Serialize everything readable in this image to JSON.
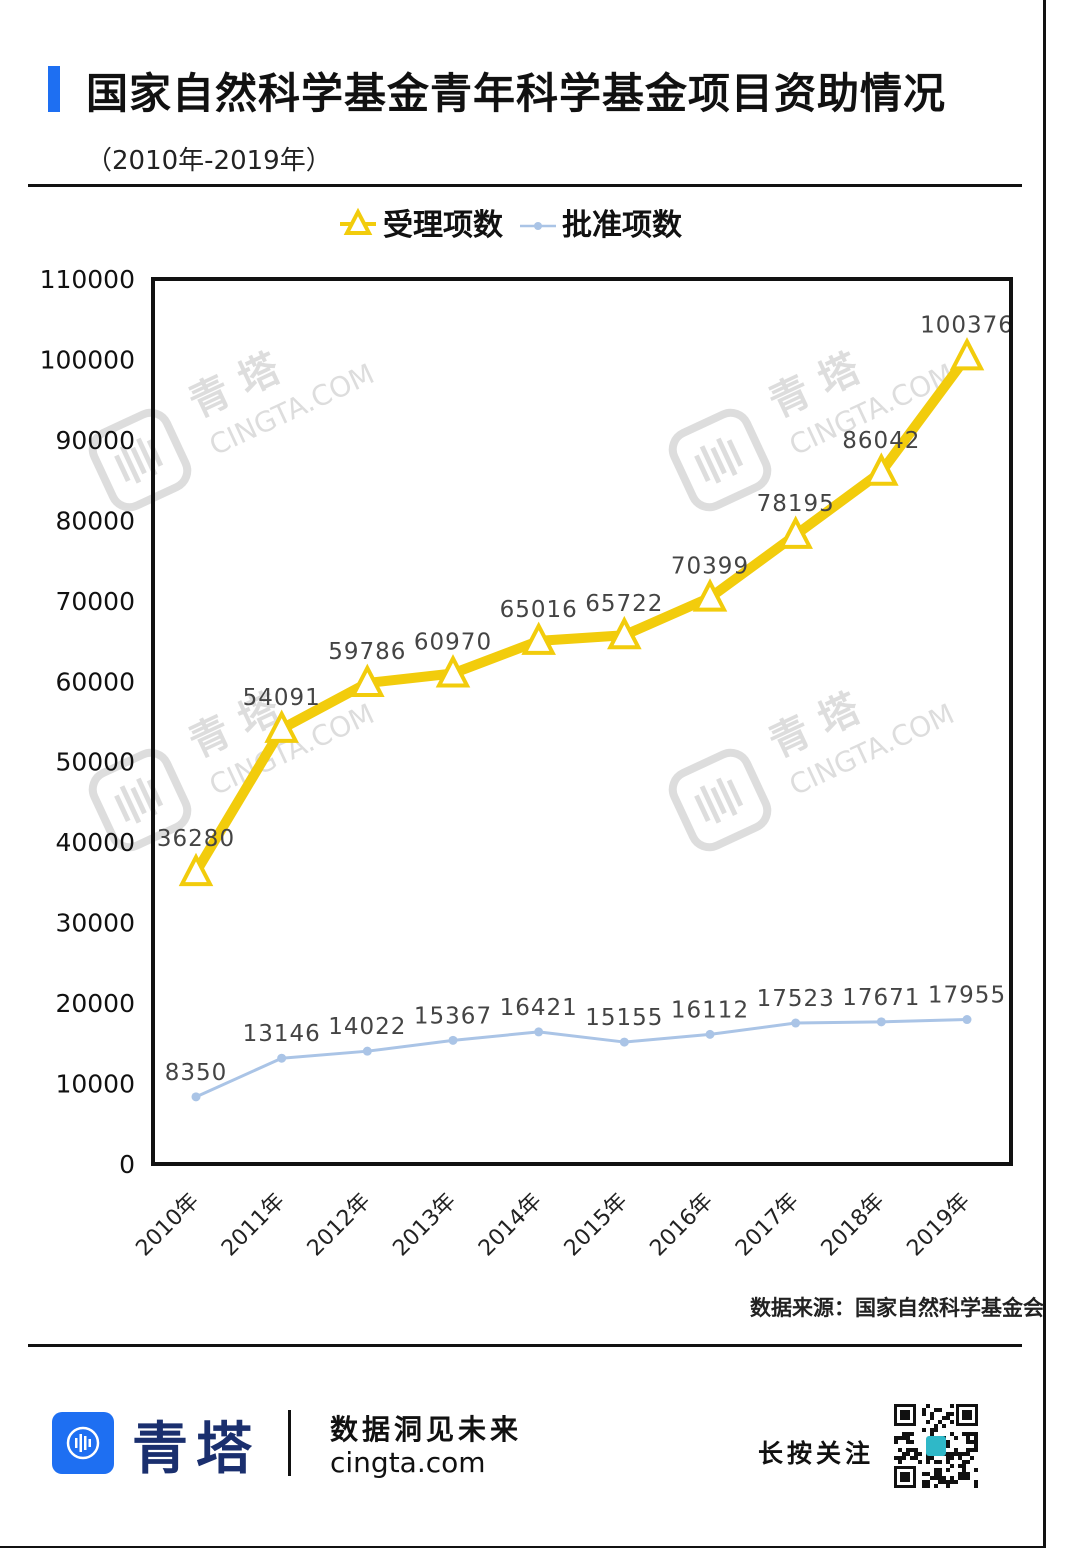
{
  "header": {
    "title": "国家自然科学基金青年科学基金项目资助情况",
    "subtitle": "（2010年-2019年）"
  },
  "colors": {
    "accent": "#1e6ff2",
    "series_applied": "#f2cc0c",
    "series_approved": "#aac4e6",
    "brand_text": "#1a2f6e"
  },
  "chart_data": {
    "type": "line",
    "categories": [
      "2010年",
      "2011年",
      "2012年",
      "2013年",
      "2014年",
      "2015年",
      "2016年",
      "2017年",
      "2018年",
      "2019年"
    ],
    "series": [
      {
        "name": "受理项数",
        "values": [
          36280,
          54091,
          59786,
          60970,
          65016,
          65722,
          70399,
          78195,
          86042,
          100376
        ],
        "color": "#f2cc0c",
        "marker": "triangle-open"
      },
      {
        "name": "批准项数",
        "values": [
          8350,
          13146,
          14022,
          15367,
          16421,
          15155,
          16112,
          17523,
          17671,
          17955
        ],
        "color": "#aac4e6",
        "marker": "dot"
      }
    ],
    "ylim": [
      0,
      110000
    ],
    "yticks": [
      0,
      10000,
      20000,
      30000,
      40000,
      50000,
      60000,
      70000,
      80000,
      90000,
      100000,
      110000
    ],
    "xlabel": "",
    "ylabel": "",
    "legend_position": "top-center",
    "grid": false,
    "data_labels": true
  },
  "watermark": {
    "brand": "青 塔",
    "domain": "CINGTA.COM"
  },
  "footer": {
    "source": "数据来源：国家自然科学基金会",
    "brand": "青塔",
    "slogan": "数据洞见未来",
    "url": "cingta.com",
    "follow": "长按关注",
    "logo_icon": "sound-wave-icon",
    "qr_icon": "qr-code-icon"
  }
}
